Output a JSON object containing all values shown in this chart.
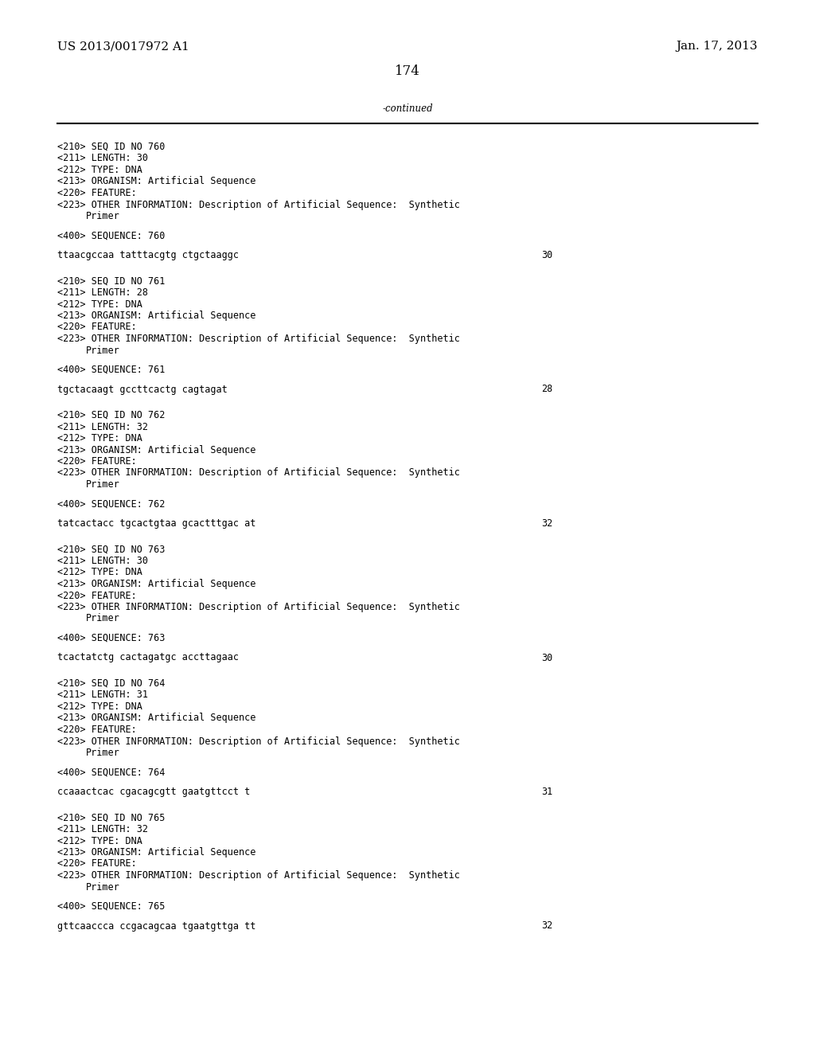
{
  "header_left": "US 2013/0017972 A1",
  "header_right": "Jan. 17, 2013",
  "page_number": "174",
  "continued_text": "-continued",
  "background_color": "#ffffff",
  "text_color": "#000000",
  "font_size_header": 11.0,
  "font_size_body": 8.5,
  "font_size_page": 12.0,
  "entries": [
    {
      "seq_id": "760",
      "length": "30",
      "type": "DNA",
      "organism": "Artificial Sequence",
      "sequence_label": "760",
      "sequence": "ttaacgccaa tatttacgtg ctgctaaggc",
      "seq_length_num": "30"
    },
    {
      "seq_id": "761",
      "length": "28",
      "type": "DNA",
      "organism": "Artificial Sequence",
      "sequence_label": "761",
      "sequence": "tgctacaagt gccttcactg cagtagat",
      "seq_length_num": "28"
    },
    {
      "seq_id": "762",
      "length": "32",
      "type": "DNA",
      "organism": "Artificial Sequence",
      "sequence_label": "762",
      "sequence": "tatcactacc tgcactgtaa gcactttgac at",
      "seq_length_num": "32"
    },
    {
      "seq_id": "763",
      "length": "30",
      "type": "DNA",
      "organism": "Artificial Sequence",
      "sequence_label": "763",
      "sequence": "tcactatctg cactagatgc accttagaac",
      "seq_length_num": "30"
    },
    {
      "seq_id": "764",
      "length": "31",
      "type": "DNA",
      "organism": "Artificial Sequence",
      "sequence_label": "764",
      "sequence": "ccaaactcac cgacagcgtt gaatgttcct t",
      "seq_length_num": "31"
    },
    {
      "seq_id": "765",
      "length": "32",
      "type": "DNA",
      "organism": "Artificial Sequence",
      "sequence_label": "765",
      "sequence": "gttcaaccca ccgacagcaa tgaatgttga tt",
      "seq_length_num": "32"
    }
  ]
}
